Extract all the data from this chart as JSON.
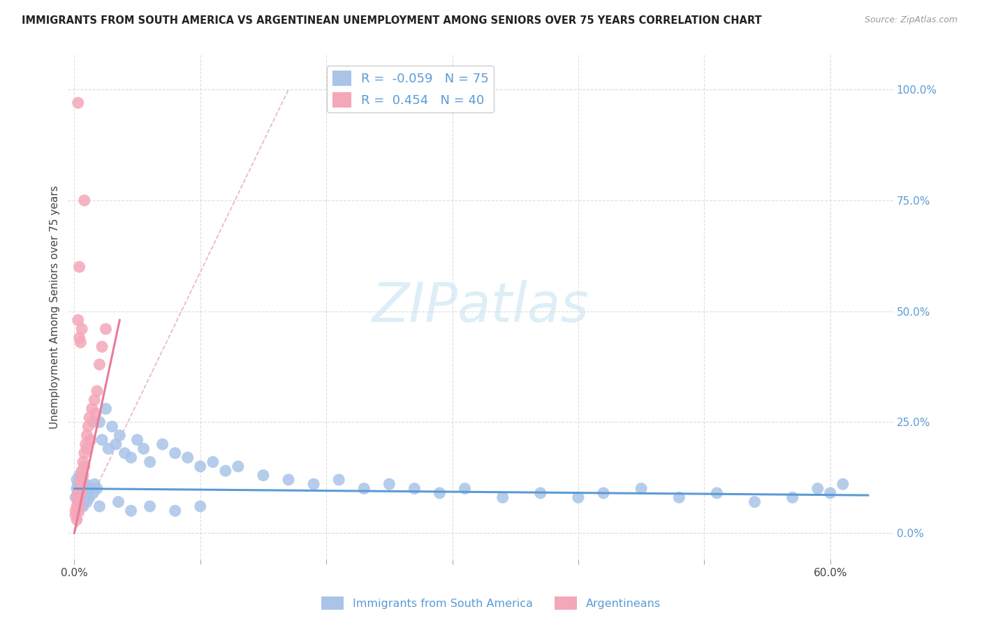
{
  "title": "IMMIGRANTS FROM SOUTH AMERICA VS ARGENTINEAN UNEMPLOYMENT AMONG SENIORS OVER 75 YEARS CORRELATION CHART",
  "source": "Source: ZipAtlas.com",
  "ylabel": "Unemployment Among Seniors over 75 years",
  "ylim_low": -0.06,
  "ylim_high": 1.08,
  "xlim_low": -0.005,
  "xlim_high": 0.65,
  "blue_R": "-0.059",
  "blue_N": "75",
  "pink_R": "0.454",
  "pink_N": "40",
  "blue_color": "#aac4e8",
  "pink_color": "#f4a7b9",
  "trendline_blue_color": "#5b9bd5",
  "trendline_pink_color": "#e87a9a",
  "trendline_dashed_color": "#e8b4c0",
  "watermark_color": "#d0e8f5",
  "legend_label_blue": "Immigrants from South America",
  "legend_label_pink": "Argentineans",
  "grid_color": "#dddddd",
  "blue_scatter_x": [
    0.001,
    0.002,
    0.002,
    0.003,
    0.003,
    0.003,
    0.004,
    0.004,
    0.004,
    0.005,
    0.005,
    0.005,
    0.006,
    0.006,
    0.006,
    0.007,
    0.007,
    0.008,
    0.008,
    0.009,
    0.009,
    0.01,
    0.01,
    0.011,
    0.012,
    0.013,
    0.015,
    0.016,
    0.018,
    0.02,
    0.022,
    0.025,
    0.027,
    0.03,
    0.033,
    0.036,
    0.04,
    0.045,
    0.05,
    0.055,
    0.06,
    0.07,
    0.08,
    0.09,
    0.1,
    0.11,
    0.12,
    0.13,
    0.15,
    0.17,
    0.19,
    0.21,
    0.23,
    0.25,
    0.27,
    0.29,
    0.31,
    0.34,
    0.37,
    0.4,
    0.42,
    0.45,
    0.48,
    0.51,
    0.54,
    0.57,
    0.59,
    0.6,
    0.61,
    0.02,
    0.035,
    0.045,
    0.06,
    0.08,
    0.1
  ],
  "blue_scatter_y": [
    0.08,
    0.1,
    0.12,
    0.09,
    0.11,
    0.07,
    0.1,
    0.13,
    0.08,
    0.09,
    0.11,
    0.07,
    0.1,
    0.12,
    0.08,
    0.09,
    0.06,
    0.1,
    0.08,
    0.11,
    0.09,
    0.1,
    0.07,
    0.09,
    0.08,
    0.1,
    0.09,
    0.11,
    0.1,
    0.25,
    0.21,
    0.28,
    0.19,
    0.24,
    0.2,
    0.22,
    0.18,
    0.17,
    0.21,
    0.19,
    0.16,
    0.2,
    0.18,
    0.17,
    0.15,
    0.16,
    0.14,
    0.15,
    0.13,
    0.12,
    0.11,
    0.12,
    0.1,
    0.11,
    0.1,
    0.09,
    0.1,
    0.08,
    0.09,
    0.08,
    0.09,
    0.1,
    0.08,
    0.09,
    0.07,
    0.08,
    0.1,
    0.09,
    0.11,
    0.06,
    0.07,
    0.05,
    0.06,
    0.05,
    0.06
  ],
  "pink_scatter_x": [
    0.001,
    0.001,
    0.002,
    0.002,
    0.002,
    0.003,
    0.003,
    0.003,
    0.004,
    0.004,
    0.004,
    0.005,
    0.005,
    0.006,
    0.006,
    0.007,
    0.007,
    0.008,
    0.008,
    0.009,
    0.01,
    0.01,
    0.011,
    0.012,
    0.013,
    0.014,
    0.015,
    0.016,
    0.017,
    0.018,
    0.02,
    0.022,
    0.025,
    0.003,
    0.004,
    0.005,
    0.006,
    0.008,
    0.004,
    0.003
  ],
  "pink_scatter_y": [
    0.05,
    0.04,
    0.06,
    0.08,
    0.03,
    0.07,
    0.09,
    0.05,
    0.1,
    0.08,
    0.06,
    0.12,
    0.09,
    0.14,
    0.11,
    0.16,
    0.13,
    0.18,
    0.15,
    0.2,
    0.22,
    0.19,
    0.24,
    0.26,
    0.21,
    0.28,
    0.25,
    0.3,
    0.27,
    0.32,
    0.38,
    0.42,
    0.46,
    0.48,
    0.44,
    0.43,
    0.46,
    0.75,
    0.6,
    0.97
  ]
}
